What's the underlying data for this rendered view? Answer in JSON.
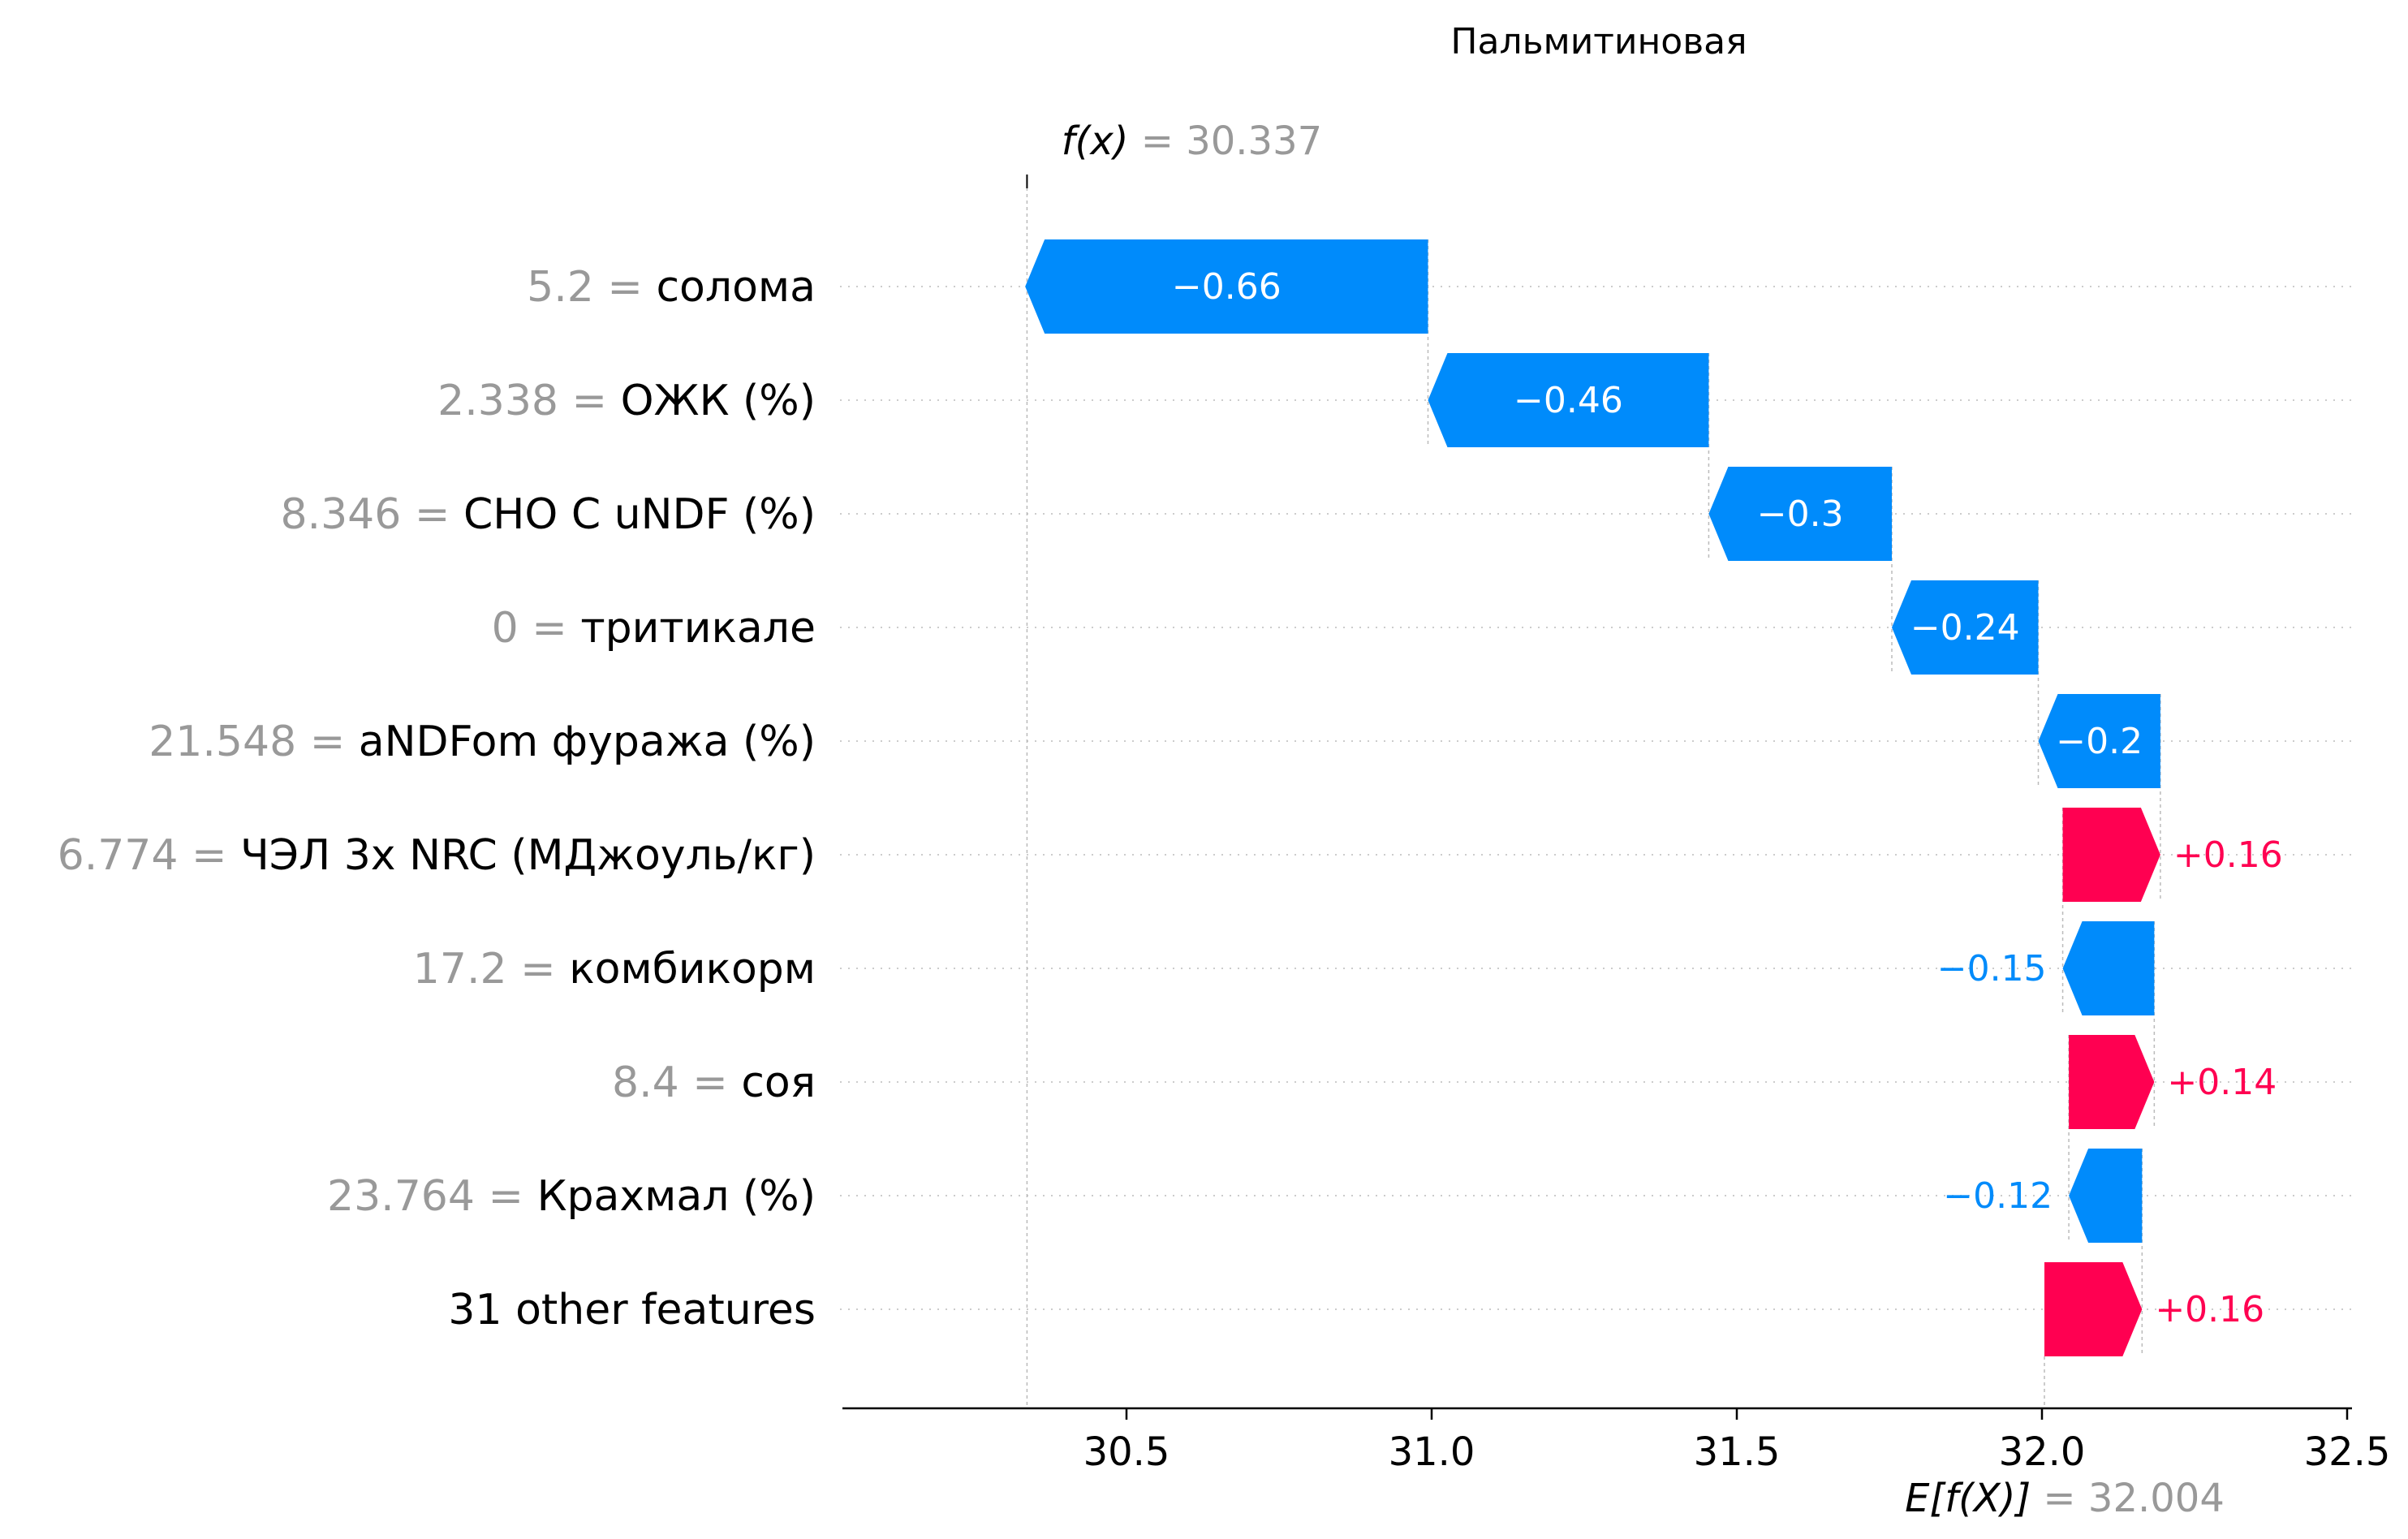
{
  "chart_data": {
    "type": "waterfall",
    "title": "Пальмитиновая",
    "fx_label": "f(x) = 30.337",
    "fx": 30.337,
    "base_label": "E[f(X)] = 32.004",
    "base_value": 32.004,
    "xlim": [
      30.0,
      32.5
    ],
    "x_ticks": [
      "30.5",
      "31.0",
      "31.5",
      "32.0",
      "32.5"
    ],
    "features": [
      {
        "value": "5.2",
        "name": "солома",
        "shap": -0.66,
        "label": "−0.66"
      },
      {
        "value": "2.338",
        "name": "ОЖК (%)",
        "shap": -0.46,
        "label": "−0.46"
      },
      {
        "value": "8.346",
        "name": "CHO C uNDF (%)",
        "shap": -0.3,
        "label": "−0.3"
      },
      {
        "value": "0",
        "name": "тритикале",
        "shap": -0.24,
        "label": "−0.24"
      },
      {
        "value": "21.548",
        "name": "aNDFom фуража (%)",
        "shap": -0.2,
        "label": "−0.2"
      },
      {
        "value": "6.774",
        "name": "ЧЭЛ 3x NRC (МДжоуль/кг)",
        "shap": 0.16,
        "label": "+0.16"
      },
      {
        "value": "17.2",
        "name": "комбикорм",
        "shap": -0.15,
        "label": "−0.15"
      },
      {
        "value": "8.4",
        "name": "соя",
        "shap": 0.14,
        "label": "+0.14"
      },
      {
        "value": "23.764",
        "name": "Крахмал (%)",
        "shap": -0.12,
        "label": "−0.12"
      },
      {
        "value": "",
        "name": "31 other features",
        "shap": 0.16,
        "label": "+0.16"
      }
    ],
    "colors": {
      "positive": "#ff0051",
      "negative": "#008bfb"
    }
  }
}
